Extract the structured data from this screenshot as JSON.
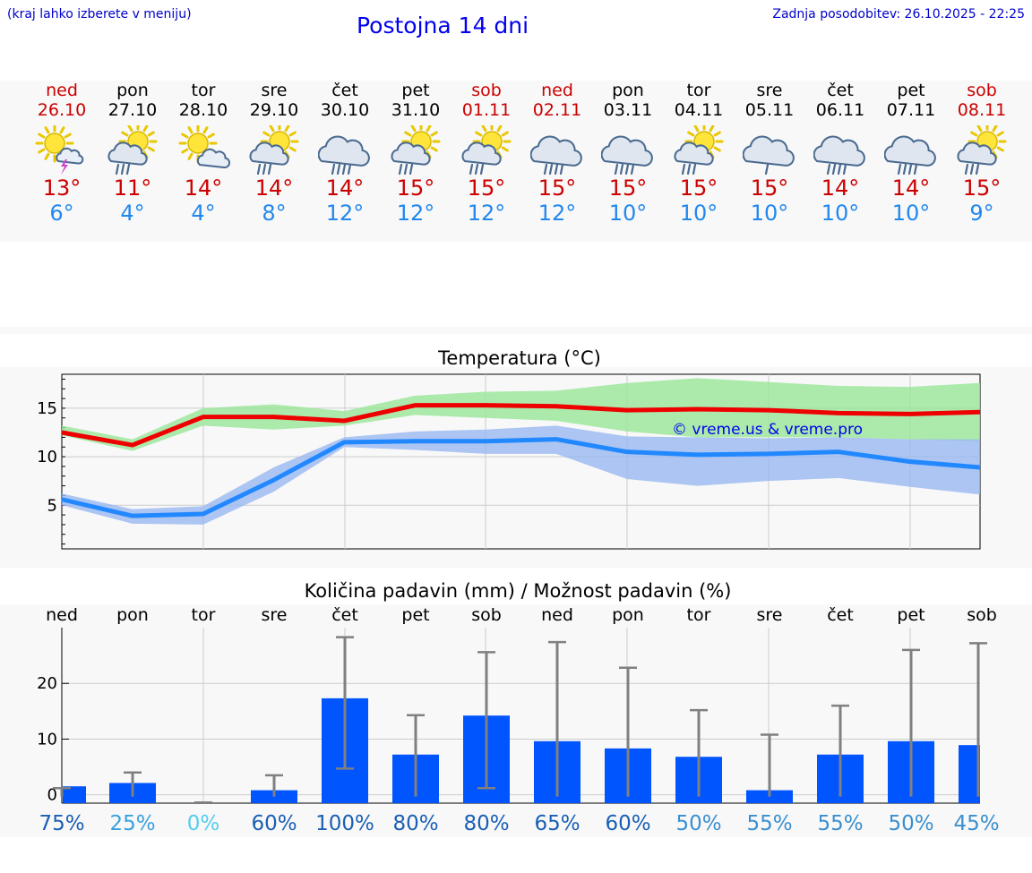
{
  "header": {
    "hint": "(kraj lahko izberete v meniju)",
    "title": "Postojna 14 dni",
    "updated": "Zadnja posodobitev: 26.10.2025 - 22:25"
  },
  "days": [
    {
      "name": "ned",
      "date": "26.10",
      "weekend": true,
      "icon": "sun-cloud-thunder-icon",
      "tmax": "13°",
      "tmin": "6°"
    },
    {
      "name": "pon",
      "date": "27.10",
      "weekend": false,
      "icon": "sun-cloud-rain-icon",
      "tmax": "11°",
      "tmin": "4°"
    },
    {
      "name": "tor",
      "date": "28.10",
      "weekend": false,
      "icon": "sun-cloud-icon",
      "tmax": "14°",
      "tmin": "4°"
    },
    {
      "name": "sre",
      "date": "29.10",
      "weekend": false,
      "icon": "sun-cloud-rain-icon",
      "tmax": "14°",
      "tmin": "8°"
    },
    {
      "name": "čet",
      "date": "30.10",
      "weekend": false,
      "icon": "cloud-rain-icon",
      "tmax": "14°",
      "tmin": "12°"
    },
    {
      "name": "pet",
      "date": "31.10",
      "weekend": false,
      "icon": "sun-cloud-rain-icon",
      "tmax": "15°",
      "tmin": "12°"
    },
    {
      "name": "sob",
      "date": "01.11",
      "weekend": true,
      "icon": "sun-cloud-rain-icon",
      "tmax": "15°",
      "tmin": "12°"
    },
    {
      "name": "ned",
      "date": "02.11",
      "weekend": true,
      "icon": "cloud-rain-icon",
      "tmax": "15°",
      "tmin": "12°"
    },
    {
      "name": "pon",
      "date": "03.11",
      "weekend": false,
      "icon": "cloud-rain-icon",
      "tmax": "15°",
      "tmin": "10°"
    },
    {
      "name": "tor",
      "date": "04.11",
      "weekend": false,
      "icon": "sun-cloud-rain-icon",
      "tmax": "15°",
      "tmin": "10°"
    },
    {
      "name": "sre",
      "date": "05.11",
      "weekend": false,
      "icon": "cloud-light-rain-icon",
      "tmax": "15°",
      "tmin": "10°"
    },
    {
      "name": "čet",
      "date": "06.11",
      "weekend": false,
      "icon": "cloud-rain-icon",
      "tmax": "14°",
      "tmin": "10°"
    },
    {
      "name": "pet",
      "date": "07.11",
      "weekend": false,
      "icon": "cloud-rain-icon",
      "tmax": "14°",
      "tmin": "10°"
    },
    {
      "name": "sob",
      "date": "08.11",
      "weekend": true,
      "icon": "sun-cloud-rain-icon",
      "tmax": "15°",
      "tmin": "9°"
    }
  ],
  "colors": {
    "weekend": "#cc0000",
    "tmax": "#ee0000",
    "tmin": "#2288ff",
    "tmax_band": "#99e699",
    "tmin_band": "#99b8f0",
    "bar": "#0055ff",
    "errbar": "#808080"
  },
  "chart_data": [
    {
      "type": "line",
      "title": "Temperatura (°C)",
      "watermark": "© vreme.us & vreme.pro",
      "ylim": [
        0.5,
        18.5
      ],
      "yticks": [
        5,
        10,
        15
      ],
      "grid": true,
      "x": [
        "26.10",
        "27.10",
        "28.10",
        "29.10",
        "30.10",
        "31.10",
        "01.11",
        "02.11",
        "03.11",
        "04.11",
        "05.11",
        "06.11",
        "07.11",
        "08.11"
      ],
      "series": [
        {
          "role": "max",
          "values": [
            12.5,
            11.2,
            14.1,
            14.1,
            13.7,
            15.3,
            15.3,
            15.2,
            14.8,
            14.9,
            14.8,
            14.5,
            14.4,
            14.6
          ],
          "band_low": [
            12.2,
            10.6,
            13.2,
            12.8,
            13.2,
            14.3,
            14.0,
            13.7,
            12.6,
            12.0,
            12.0,
            12.0,
            11.8,
            11.6
          ],
          "band_high": [
            13.2,
            11.8,
            15.0,
            15.4,
            14.7,
            16.3,
            16.7,
            16.8,
            17.6,
            18.1,
            17.7,
            17.3,
            17.2,
            17.6
          ]
        },
        {
          "role": "min",
          "values": [
            5.6,
            3.9,
            4.1,
            7.6,
            11.5,
            11.6,
            11.6,
            11.8,
            10.5,
            10.2,
            10.3,
            10.5,
            9.5,
            8.9
          ],
          "band_low": [
            5.0,
            3.1,
            3.0,
            6.4,
            11.0,
            10.7,
            10.3,
            10.3,
            7.7,
            7.0,
            7.5,
            7.8,
            6.9,
            6.1
          ],
          "band_high": [
            6.2,
            4.6,
            4.9,
            8.9,
            12.0,
            12.6,
            12.8,
            13.2,
            12.1,
            12.0,
            11.9,
            12.0,
            11.8,
            11.8
          ]
        }
      ]
    },
    {
      "type": "bar",
      "title": "Količina padavin (mm) / Možnost padavin (%)",
      "ylim": [
        -1.5,
        30
      ],
      "yticks": [
        0,
        10,
        20
      ],
      "grid": true,
      "categories": [
        "ned",
        "pon",
        "tor",
        "sre",
        "čet",
        "pet",
        "sob",
        "ned",
        "pon",
        "tor",
        "sre",
        "čet",
        "pet",
        "sob"
      ],
      "values": [
        1.2,
        1.8,
        0.0,
        0.5,
        17.0,
        6.9,
        13.9,
        9.3,
        8.0,
        6.5,
        0.5,
        6.9,
        9.3,
        8.6
      ],
      "err_low": [
        0.0,
        0.0,
        0.0,
        0.0,
        4.7,
        0.0,
        1.2,
        0.0,
        0.0,
        0.0,
        0.0,
        0.0,
        0.0,
        0.0
      ],
      "err_high": [
        1.2,
        4.0,
        0.0,
        3.5,
        28.3,
        14.3,
        25.6,
        27.4,
        22.8,
        15.2,
        10.8,
        16.0,
        26.0,
        27.2
      ],
      "probabilities": [
        "75%",
        "25%",
        "0%",
        "60%",
        "100%",
        "80%",
        "80%",
        "65%",
        "60%",
        "50%",
        "55%",
        "55%",
        "50%",
        "45%"
      ]
    }
  ]
}
